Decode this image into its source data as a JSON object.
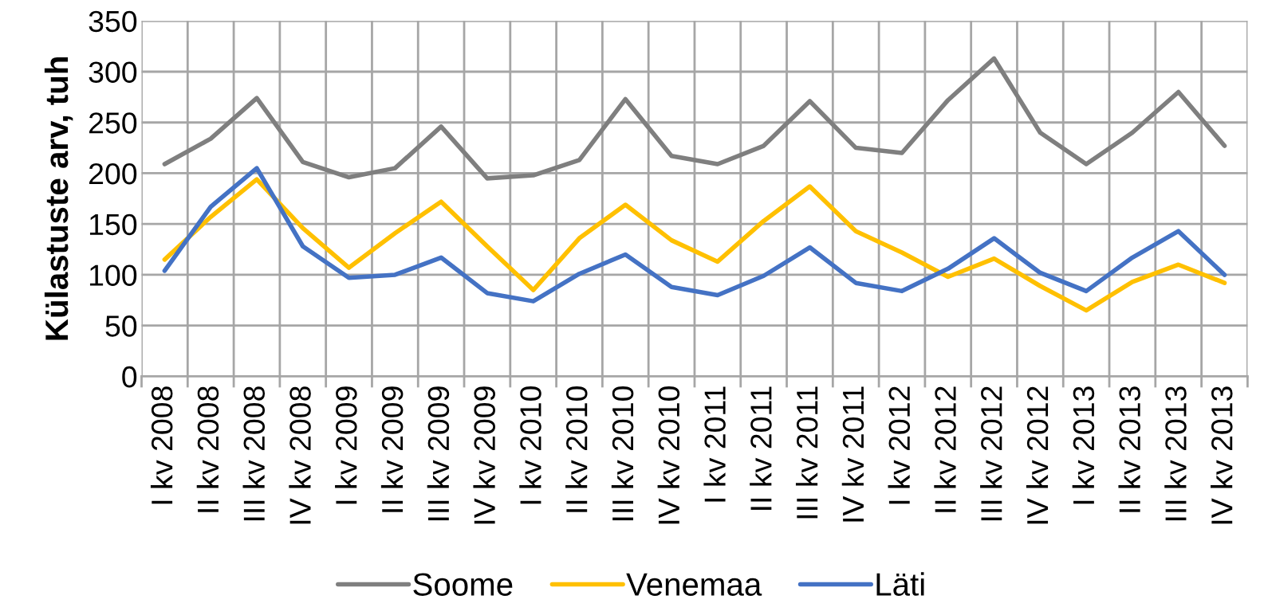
{
  "chart_data": {
    "type": "line",
    "ylabel": "Külastuste arv, tuh",
    "categories": [
      "I kv 2008",
      "II kv 2008",
      "III kv 2008",
      "IV kv 2008",
      "I kv 2009",
      "II kv 2009",
      "III kv 2009",
      "IV kv 2009",
      "I kv 2010",
      "II kv 2010",
      "III kv 2010",
      "IV kv 2010",
      "I kv 2011",
      "II kv 2011",
      "III kv 2011",
      "IV kv 2011",
      "I kv 2012",
      "II kv 2012",
      "III kv 2012",
      "IV kv 2012",
      "I kv 2013",
      "II kv 2013",
      "III kv 2013",
      "IV kv 2013"
    ],
    "series": [
      {
        "name": "Soome",
        "color": "#7f7f7f",
        "values": [
          209,
          234,
          274,
          211,
          196,
          205,
          246,
          195,
          198,
          213,
          273,
          217,
          209,
          227,
          271,
          225,
          220,
          272,
          313,
          240,
          209,
          240,
          280,
          227
        ]
      },
      {
        "name": "Venemaa",
        "color": "#ffc000",
        "values": [
          115,
          157,
          194,
          146,
          107,
          141,
          172,
          128,
          85,
          136,
          169,
          134,
          113,
          153,
          187,
          143,
          122,
          98,
          116,
          89,
          65,
          93,
          110,
          92
        ]
      },
      {
        "name": "Läti",
        "color": "#4472c4",
        "values": [
          104,
          167,
          205,
          128,
          97,
          100,
          117,
          82,
          74,
          101,
          120,
          88,
          80,
          99,
          127,
          92,
          84,
          106,
          136,
          102,
          84,
          117,
          143,
          100
        ]
      }
    ],
    "ylim": [
      0,
      350
    ],
    "yticks": [
      0,
      50,
      100,
      150,
      200,
      250,
      300,
      350
    ],
    "grid": true,
    "legend": "bottom",
    "marker": "none",
    "line_style": "solid"
  }
}
